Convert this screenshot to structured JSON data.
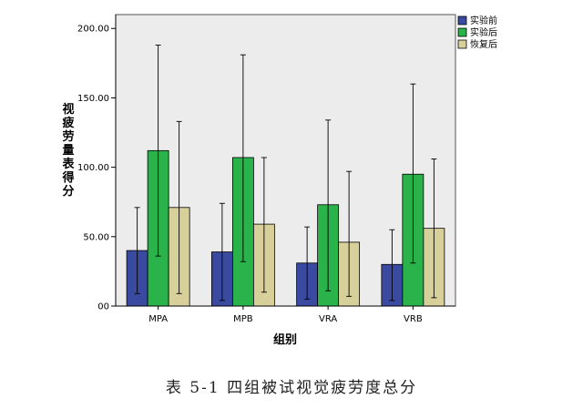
{
  "chart_data": {
    "type": "bar",
    "title": "",
    "xlabel": "组别",
    "ylabel": "视疲劳量表得分",
    "ylim": [
      0,
      210
    ],
    "yticks": [
      0,
      50,
      100,
      150,
      200
    ],
    "ytick_labels": [
      "00",
      "50.00",
      "100.00",
      "150.00",
      "200.00"
    ],
    "grid": false,
    "legend_position": "top-right",
    "categories": [
      "MPA",
      "MPB",
      "VRA",
      "VRB"
    ],
    "series": [
      {
        "name": "实验前",
        "color": "#3a4aa0",
        "values": [
          40,
          39,
          31,
          30
        ],
        "err_low": [
          9,
          4,
          5,
          4
        ],
        "err_high": [
          71,
          74,
          57,
          55
        ]
      },
      {
        "name": "实验后",
        "color": "#2ab34a",
        "values": [
          112,
          107,
          73,
          95
        ],
        "err_low": [
          36,
          32,
          11,
          31
        ],
        "err_high": [
          188,
          181,
          134,
          160
        ]
      },
      {
        "name": "恢复后",
        "color": "#d8d09a",
        "values": [
          71,
          59,
          46,
          56
        ],
        "err_low": [
          9,
          10,
          7,
          6
        ],
        "err_high": [
          133,
          107,
          97,
          106
        ]
      }
    ]
  },
  "caption": "表 5-1  四组被试视觉疲劳度总分"
}
